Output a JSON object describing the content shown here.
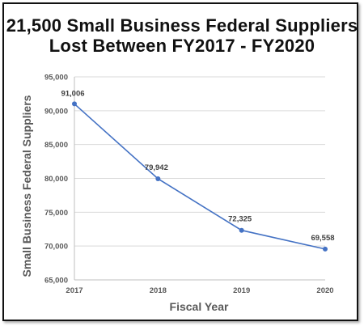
{
  "chart_data": {
    "type": "line",
    "title_line1": "21,500 Small Business Federal Suppliers",
    "title_line2": "Lost Between FY2017 - FY2020",
    "xlabel": "Fiscal Year",
    "ylabel": "Small Business Federal Suppliers",
    "categories": [
      "2017",
      "2018",
      "2019",
      "2020"
    ],
    "series": [
      {
        "values": [
          91006,
          79942,
          72325,
          69558
        ]
      }
    ],
    "data_labels": [
      "91,006",
      "79,942",
      "72,325",
      "69,558"
    ],
    "ylim": [
      65000,
      95000
    ],
    "yticks": [
      65000,
      70000,
      75000,
      80000,
      85000,
      90000,
      95000
    ],
    "ytick_labels": [
      "65,000",
      "70,000",
      "75,000",
      "80,000",
      "85,000",
      "90,000",
      "95,000"
    ],
    "grid": true,
    "line_color": "#4472c4",
    "grid_color": "#d9d9d9"
  }
}
